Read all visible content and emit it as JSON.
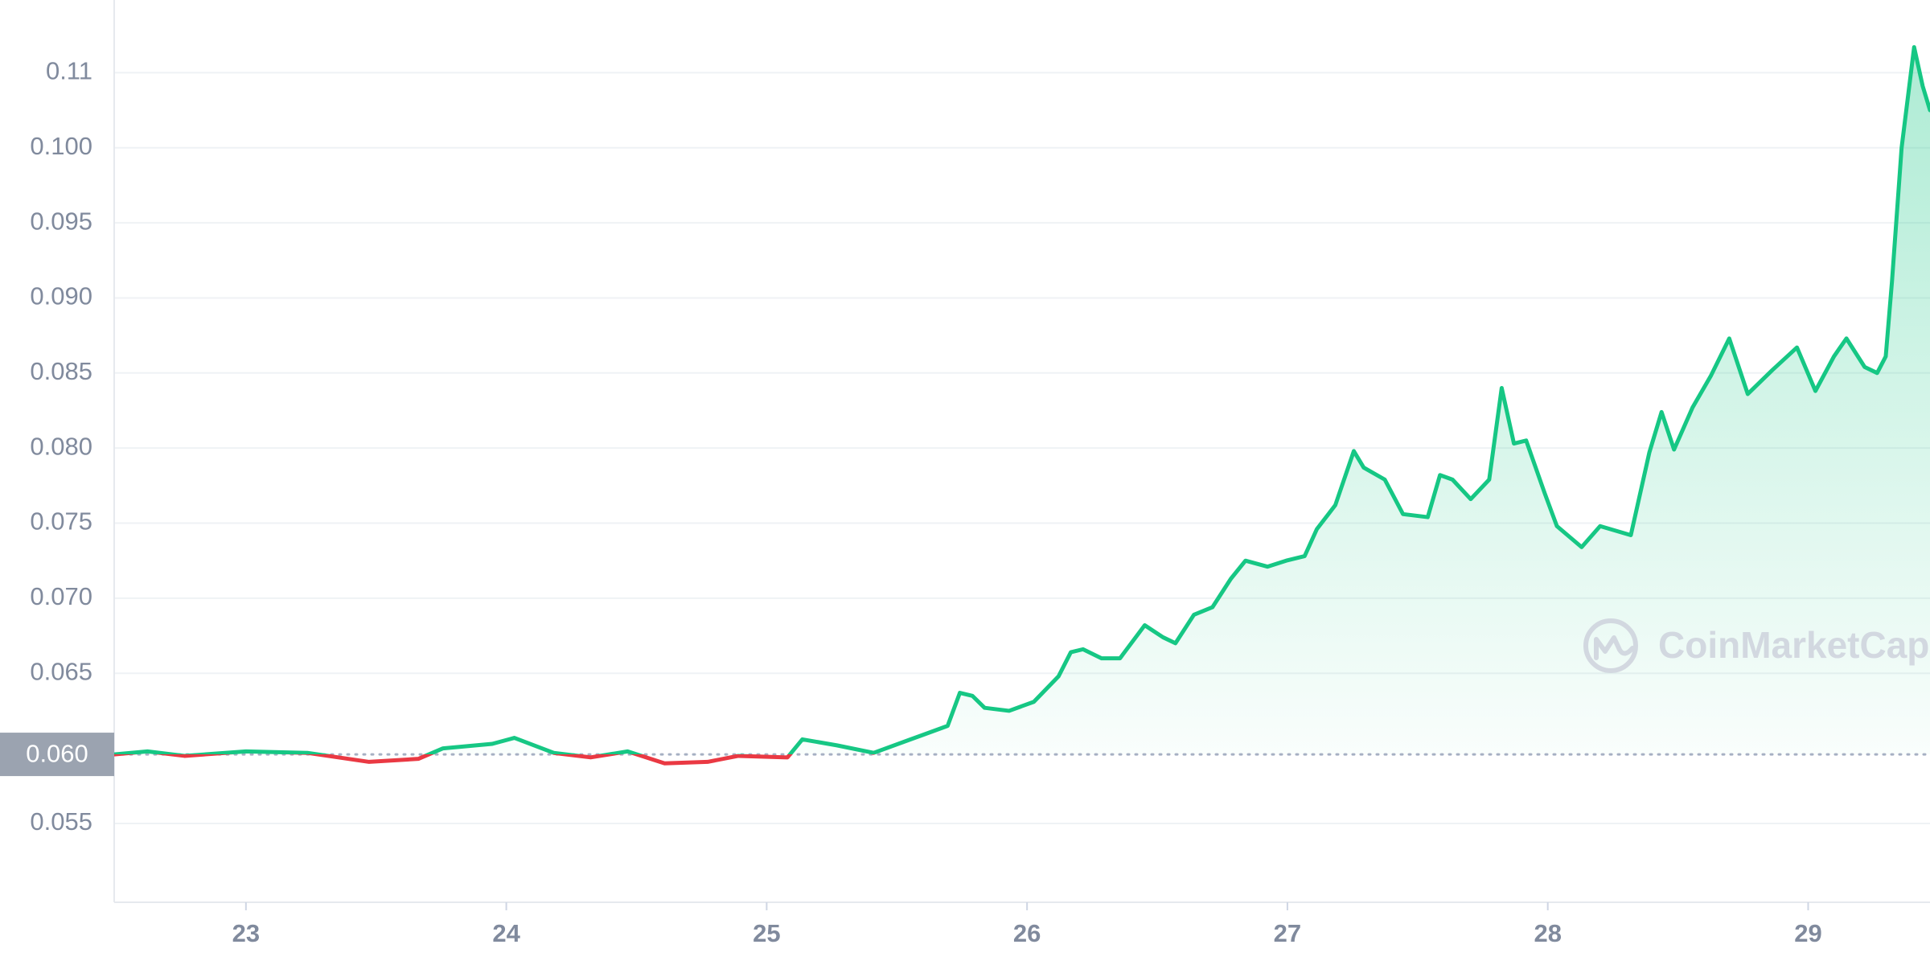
{
  "chart_data": {
    "type": "line",
    "watermark": "CoinMarketCap",
    "x": [
      22.494,
      22.622,
      22.764,
      23.0,
      23.236,
      23.473,
      23.662,
      23.757,
      23.946,
      24.031,
      24.182,
      24.324,
      24.466,
      24.608,
      24.773,
      24.891,
      25.08,
      25.137,
      25.27,
      25.411,
      25.553,
      25.695,
      25.742,
      25.79,
      25.837,
      25.931,
      26.026,
      26.121,
      26.168,
      26.215,
      26.286,
      26.357,
      26.452,
      26.522,
      26.57,
      26.641,
      26.712,
      26.783,
      26.839,
      26.924,
      26.995,
      27.066,
      27.113,
      27.184,
      27.255,
      27.293,
      27.374,
      27.444,
      27.539,
      27.586,
      27.634,
      27.704,
      27.775,
      27.823,
      27.87,
      27.917,
      27.988,
      28.035,
      28.13,
      28.201,
      28.319,
      28.39,
      28.437,
      28.485,
      28.556,
      28.626,
      28.697,
      28.768,
      28.863,
      28.957,
      29.028,
      29.099,
      29.147,
      29.217,
      29.265,
      29.298,
      29.322,
      29.359,
      29.407,
      29.44,
      29.468
    ],
    "values": [
      0.0596,
      0.0598,
      0.0595,
      0.0598,
      0.0597,
      0.0591,
      0.0593,
      0.06,
      0.0603,
      0.0607,
      0.0597,
      0.0594,
      0.0598,
      0.059,
      0.0591,
      0.0595,
      0.0594,
      0.0606,
      0.0602,
      0.0597,
      0.0606,
      0.0615,
      0.0637,
      0.0635,
      0.0627,
      0.0625,
      0.0631,
      0.0648,
      0.0664,
      0.0666,
      0.066,
      0.066,
      0.0682,
      0.0674,
      0.067,
      0.0689,
      0.0694,
      0.0713,
      0.0725,
      0.0721,
      0.0725,
      0.0728,
      0.0746,
      0.0762,
      0.0798,
      0.0787,
      0.0779,
      0.0756,
      0.0754,
      0.0782,
      0.0779,
      0.0766,
      0.0779,
      0.084,
      0.0803,
      0.0805,
      0.077,
      0.0748,
      0.0734,
      0.0748,
      0.0742,
      0.0797,
      0.0824,
      0.0799,
      0.0827,
      0.0848,
      0.0873,
      0.0836,
      0.0852,
      0.0867,
      0.0838,
      0.0861,
      0.0873,
      0.0854,
      0.085,
      0.0861,
      0.0911,
      0.1,
      0.1067,
      0.1041,
      0.1025
    ],
    "color": "#16c784",
    "down_color": "#ea3943",
    "baseline": {
      "value": 0.0596,
      "label": "0.060"
    },
    "xlim": [
      22.494,
      29.468
    ],
    "xticks": [
      23,
      24,
      25,
      26,
      27,
      28,
      29
    ],
    "ylim": [
      0.04975,
      0.10984
    ],
    "yticks": [
      0.055,
      0.065,
      {
        "value": 0.07,
        "label": "0.070"
      },
      0.075,
      {
        "value": 0.08,
        "label": "0.080"
      },
      0.085,
      {
        "value": 0.09,
        "label": "0.090"
      },
      0.095,
      {
        "value": 0.1,
        "label": "0.100"
      },
      {
        "value": 0.105,
        "label": "0.11"
      }
    ],
    "grid": true
  }
}
